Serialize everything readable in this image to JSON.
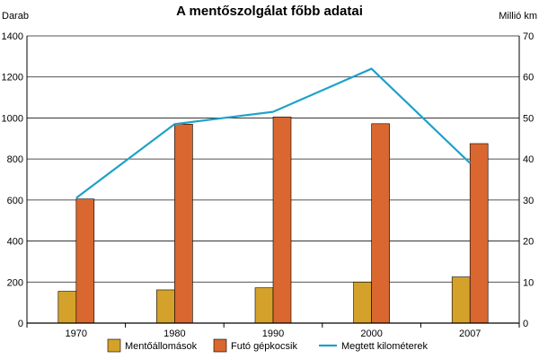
{
  "chart_data": {
    "type": "bar",
    "title": "A mentőszolgálat főbb adatai",
    "ylabel_left": "Darab",
    "ylabel_right": "Millió km",
    "categories": [
      "1970",
      "1980",
      "1990",
      "2000",
      "2007"
    ],
    "y_left": {
      "min": 0,
      "max": 1400,
      "ticks": [
        0,
        200,
        400,
        600,
        800,
        1000,
        1200,
        1400
      ]
    },
    "y_right": {
      "min": 0,
      "max": 70,
      "ticks": [
        0,
        10,
        20,
        30,
        40,
        50,
        60,
        70
      ]
    },
    "grid": "horizontal",
    "legend_position": "bottom",
    "series": [
      {
        "name": "Mentőállomások",
        "kind": "bar",
        "axis": "left",
        "color": "#D4A22B",
        "values": [
          155,
          162,
          172,
          200,
          225
        ]
      },
      {
        "name": "Futó gépkocsik",
        "kind": "bar",
        "axis": "left",
        "color": "#D9672F",
        "values": [
          605,
          970,
          1005,
          972,
          875
        ]
      },
      {
        "name": "Megtett kilométerek",
        "kind": "line",
        "axis": "right",
        "color": "#1EA1C8",
        "values": [
          30.5,
          48.5,
          51.5,
          62,
          39
        ]
      }
    ]
  }
}
